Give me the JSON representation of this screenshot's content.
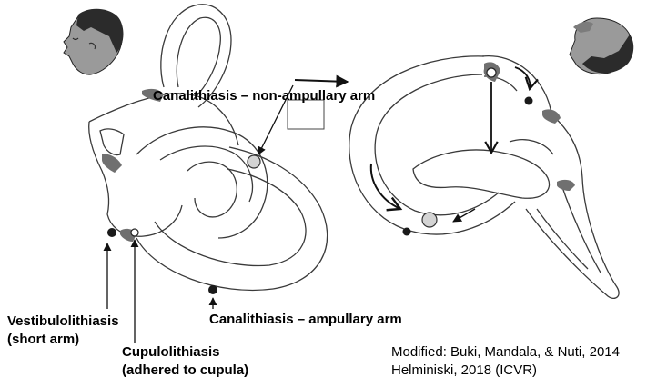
{
  "labels": {
    "canalithiasis_non_ampullary": "Canalithiasis – non-ampullary arm",
    "canalithiasis_ampullary": "Canalithiasis – ampullary arm",
    "vestibulolithiasis_line1": "Vestibulolithiasis",
    "vestibulolithiasis_line2": "(short arm)",
    "cupulolithiasis_line1": "Cupulolithiasis",
    "cupulolithiasis_line2": "(adhered to cupula)"
  },
  "citation": {
    "line1": "Modified: Buki, Mandala, & Nuti, 2014",
    "line2": "Helminiski, 2018 (ICVR)"
  },
  "colors": {
    "canal_stroke": "#3a3a3a",
    "head_skin": "#9a9a9a",
    "hair": "#2b2b2b",
    "cupula": "#707070",
    "otolith_light": "#d4d4d4",
    "otolith_dark": "#1a1a1a"
  }
}
